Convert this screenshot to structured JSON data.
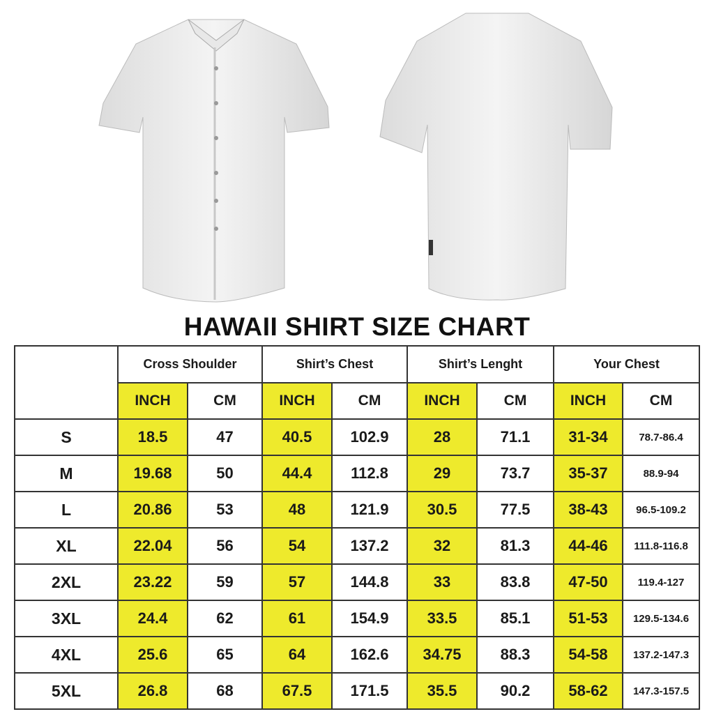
{
  "title": "HAWAII SHIRT SIZE CHART",
  "colors": {
    "inch_highlight": "#eeea2c",
    "border": "#333333"
  },
  "images": {
    "front": "white-short-sleeve-shirt-front",
    "back": "white-short-sleeve-shirt-back"
  },
  "groups": [
    "Cross Shoulder",
    "Shirt’s Chest",
    "Shirt’s Lenght",
    "Your Chest"
  ],
  "units": [
    "INCH",
    "CM"
  ],
  "rows": [
    {
      "size": "S",
      "values": [
        "18.5",
        "47",
        "40.5",
        "102.9",
        "28",
        "71.1",
        "31-34",
        "78.7-86.4"
      ]
    },
    {
      "size": "M",
      "values": [
        "19.68",
        "50",
        "44.4",
        "112.8",
        "29",
        "73.7",
        "35-37",
        "88.9-94"
      ]
    },
    {
      "size": "L",
      "values": [
        "20.86",
        "53",
        "48",
        "121.9",
        "30.5",
        "77.5",
        "38-43",
        "96.5-109.2"
      ]
    },
    {
      "size": "XL",
      "values": [
        "22.04",
        "56",
        "54",
        "137.2",
        "32",
        "81.3",
        "44-46",
        "111.8-116.8"
      ]
    },
    {
      "size": "2XL",
      "values": [
        "23.22",
        "59",
        "57",
        "144.8",
        "33",
        "83.8",
        "47-50",
        "119.4-127"
      ]
    },
    {
      "size": "3XL",
      "values": [
        "24.4",
        "62",
        "61",
        "154.9",
        "33.5",
        "85.1",
        "51-53",
        "129.5-134.6"
      ]
    },
    {
      "size": "4XL",
      "values": [
        "25.6",
        "65",
        "64",
        "162.6",
        "34.75",
        "88.3",
        "54-58",
        "137.2-147.3"
      ]
    },
    {
      "size": "5XL",
      "values": [
        "26.8",
        "68",
        "67.5",
        "171.5",
        "35.5",
        "90.2",
        "58-62",
        "147.3-157.5"
      ]
    }
  ]
}
